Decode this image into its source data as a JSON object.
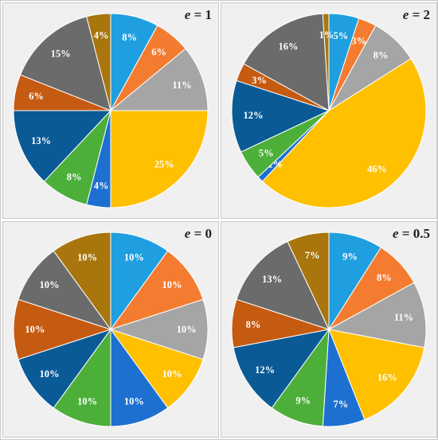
{
  "colors": [
    "#1f9fe0",
    "#f47c30",
    "#a5a5a5",
    "#ffc000",
    "#1e70d0",
    "#4caf3a",
    "#0a5a96",
    "#c55a11",
    "#6b6b6b",
    "#a8760d"
  ],
  "chart_data": [
    {
      "type": "pie",
      "title_var": "e",
      "title_val": "= 1",
      "values": [
        8,
        6,
        11,
        25,
        4,
        8,
        13,
        6,
        15,
        4
      ],
      "labels": [
        "8%",
        "6%",
        "11%",
        "25%",
        "4%",
        "8%",
        "13%",
        "6%",
        "15%",
        "4%"
      ]
    },
    {
      "type": "pie",
      "title_var": "e",
      "title_val": "= 2",
      "values": [
        5,
        3,
        8,
        46,
        1,
        5,
        12,
        3,
        16,
        1
      ],
      "labels": [
        "5%",
        "3%",
        "8%",
        "46%",
        "1%",
        "5%",
        "12%",
        "3%",
        "16%",
        "1%"
      ]
    },
    {
      "type": "pie",
      "title_var": "e",
      "title_val": "= 0",
      "values": [
        10,
        10,
        10,
        10,
        10,
        10,
        10,
        10,
        10,
        10
      ],
      "labels": [
        "10%",
        "10%",
        "10%",
        "10%",
        "10%",
        "10%",
        "10%",
        "10%",
        "10%",
        "10%"
      ]
    },
    {
      "type": "pie",
      "title_var": "e",
      "title_val": "= 0.5",
      "values": [
        9,
        8,
        11,
        16,
        7,
        9,
        12,
        8,
        13,
        7
      ],
      "labels": [
        "9%",
        "8%",
        "11%",
        "16%",
        "7%",
        "9%",
        "12%",
        "8%",
        "13%",
        "7%"
      ]
    }
  ]
}
